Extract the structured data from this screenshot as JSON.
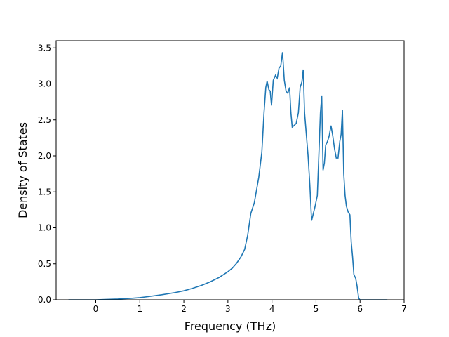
{
  "chart_data": {
    "type": "line",
    "title": "",
    "xlabel": "Frequency (THz)",
    "ylabel": "Density of States",
    "xlim": [
      -0.9,
      7.0
    ],
    "ylim": [
      0.0,
      3.6
    ],
    "xticks": [
      0,
      1,
      2,
      3,
      4,
      5,
      6,
      7
    ],
    "xtick_labels": [
      "0",
      "1",
      "2",
      "3",
      "4",
      "5",
      "6",
      "7"
    ],
    "yticks": [
      0.0,
      0.5,
      1.0,
      1.5,
      2.0,
      2.5,
      3.0,
      3.5
    ],
    "ytick_labels": [
      "0.0",
      "0.5",
      "1.0",
      "1.5",
      "2.0",
      "2.5",
      "3.0",
      "3.5"
    ],
    "grid": false,
    "legend": "none",
    "colors": {
      "line": "#1f77b4",
      "axes": "#000000",
      "background": "#ffffff"
    },
    "series": [
      {
        "x": [
          -0.62,
          0.0,
          0.2,
          0.5,
          0.8,
          1.0,
          1.2,
          1.5,
          1.8,
          2.0,
          2.2,
          2.4,
          2.6,
          2.8,
          3.0,
          3.1,
          3.2,
          3.3,
          3.38,
          3.45,
          3.52,
          3.6,
          3.7,
          3.77,
          3.82,
          3.86,
          3.89,
          3.93,
          3.96,
          3.99,
          4.03,
          4.08,
          4.12,
          4.16,
          4.2,
          4.24,
          4.28,
          4.32,
          4.36,
          4.4,
          4.43,
          4.46,
          4.5,
          4.55,
          4.6,
          4.64,
          4.68,
          4.71,
          4.74,
          4.78,
          4.82,
          4.86,
          4.9,
          4.94,
          4.98,
          5.03,
          5.07,
          5.1,
          5.13,
          5.16,
          5.19,
          5.22,
          5.26,
          5.3,
          5.34,
          5.38,
          5.42,
          5.46,
          5.5,
          5.54,
          5.57,
          5.6,
          5.63,
          5.66,
          5.69,
          5.73,
          5.77,
          5.8,
          5.83,
          5.86,
          5.9,
          5.93,
          5.97,
          6.0,
          6.05,
          6.2,
          6.5,
          6.62
        ],
        "y": [
          0.0,
          0.0,
          0.005,
          0.01,
          0.02,
          0.03,
          0.045,
          0.07,
          0.1,
          0.125,
          0.16,
          0.2,
          0.25,
          0.31,
          0.39,
          0.44,
          0.51,
          0.6,
          0.7,
          0.9,
          1.2,
          1.35,
          1.7,
          2.05,
          2.6,
          2.95,
          3.04,
          2.92,
          2.9,
          2.7,
          3.05,
          3.12,
          3.08,
          3.22,
          3.25,
          3.44,
          3.05,
          2.9,
          2.87,
          2.95,
          2.6,
          2.4,
          2.42,
          2.45,
          2.6,
          2.95,
          3.03,
          3.2,
          2.6,
          2.3,
          2.0,
          1.6,
          1.1,
          1.2,
          1.3,
          1.45,
          2.1,
          2.6,
          2.83,
          1.8,
          1.9,
          2.15,
          2.2,
          2.28,
          2.42,
          2.28,
          2.1,
          1.97,
          1.97,
          2.2,
          2.3,
          2.64,
          1.75,
          1.45,
          1.3,
          1.22,
          1.18,
          0.8,
          0.6,
          0.35,
          0.3,
          0.2,
          0.02,
          0.0,
          0.0,
          0.0,
          0.0,
          0.0
        ]
      }
    ]
  }
}
